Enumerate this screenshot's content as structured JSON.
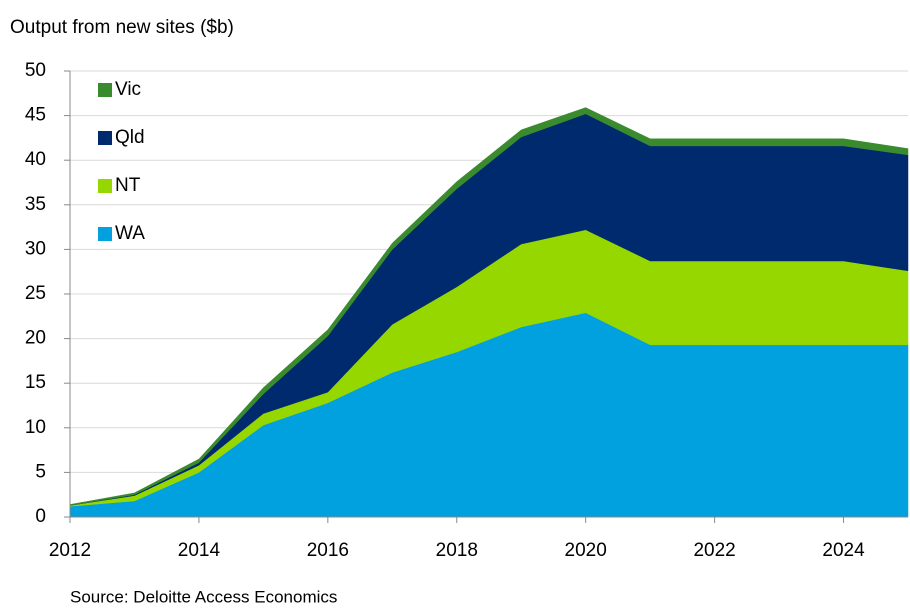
{
  "chart_data": {
    "type": "stacked_area",
    "title": "Output from new sites ($b)",
    "source": "Source: Deloitte Access Economics",
    "x": [
      2012,
      2013,
      2014,
      2015,
      2016,
      2017,
      2018,
      2019,
      2020,
      2021,
      2022,
      2023,
      2024,
      2025
    ],
    "series": [
      {
        "name": "WA",
        "color": "#00a1de",
        "values": [
          1.2,
          1.8,
          5.0,
          10.3,
          12.8,
          16.2,
          18.5,
          21.3,
          22.9,
          19.3,
          19.3,
          19.3,
          19.3,
          19.3
        ]
      },
      {
        "name": "NT",
        "color": "#97d700",
        "values": [
          0.1,
          0.6,
          0.8,
          1.3,
          1.2,
          5.4,
          7.3,
          9.3,
          9.3,
          9.4,
          9.4,
          9.4,
          9.4,
          8.3
        ]
      },
      {
        "name": "Qld",
        "color": "#002a6e",
        "values": [
          0.0,
          0.1,
          0.3,
          2.2,
          6.3,
          8.4,
          11.0,
          12.0,
          13.0,
          12.9,
          12.9,
          12.9,
          12.9,
          13.0
        ]
      },
      {
        "name": "Vic",
        "color": "#3a8a2e",
        "values": [
          0.1,
          0.2,
          0.4,
          0.7,
          0.7,
          0.7,
          0.8,
          0.8,
          0.7,
          0.8,
          0.8,
          0.8,
          0.8,
          0.7
        ]
      }
    ],
    "xlim": [
      2012,
      2025
    ],
    "xticks": [
      2012,
      2014,
      2016,
      2018,
      2020,
      2022,
      2024
    ],
    "ylim": [
      0,
      50
    ],
    "yticks": [
      0,
      5,
      10,
      15,
      20,
      25,
      30,
      35,
      40,
      45,
      50
    ],
    "grid": true,
    "legend": "upper left"
  }
}
